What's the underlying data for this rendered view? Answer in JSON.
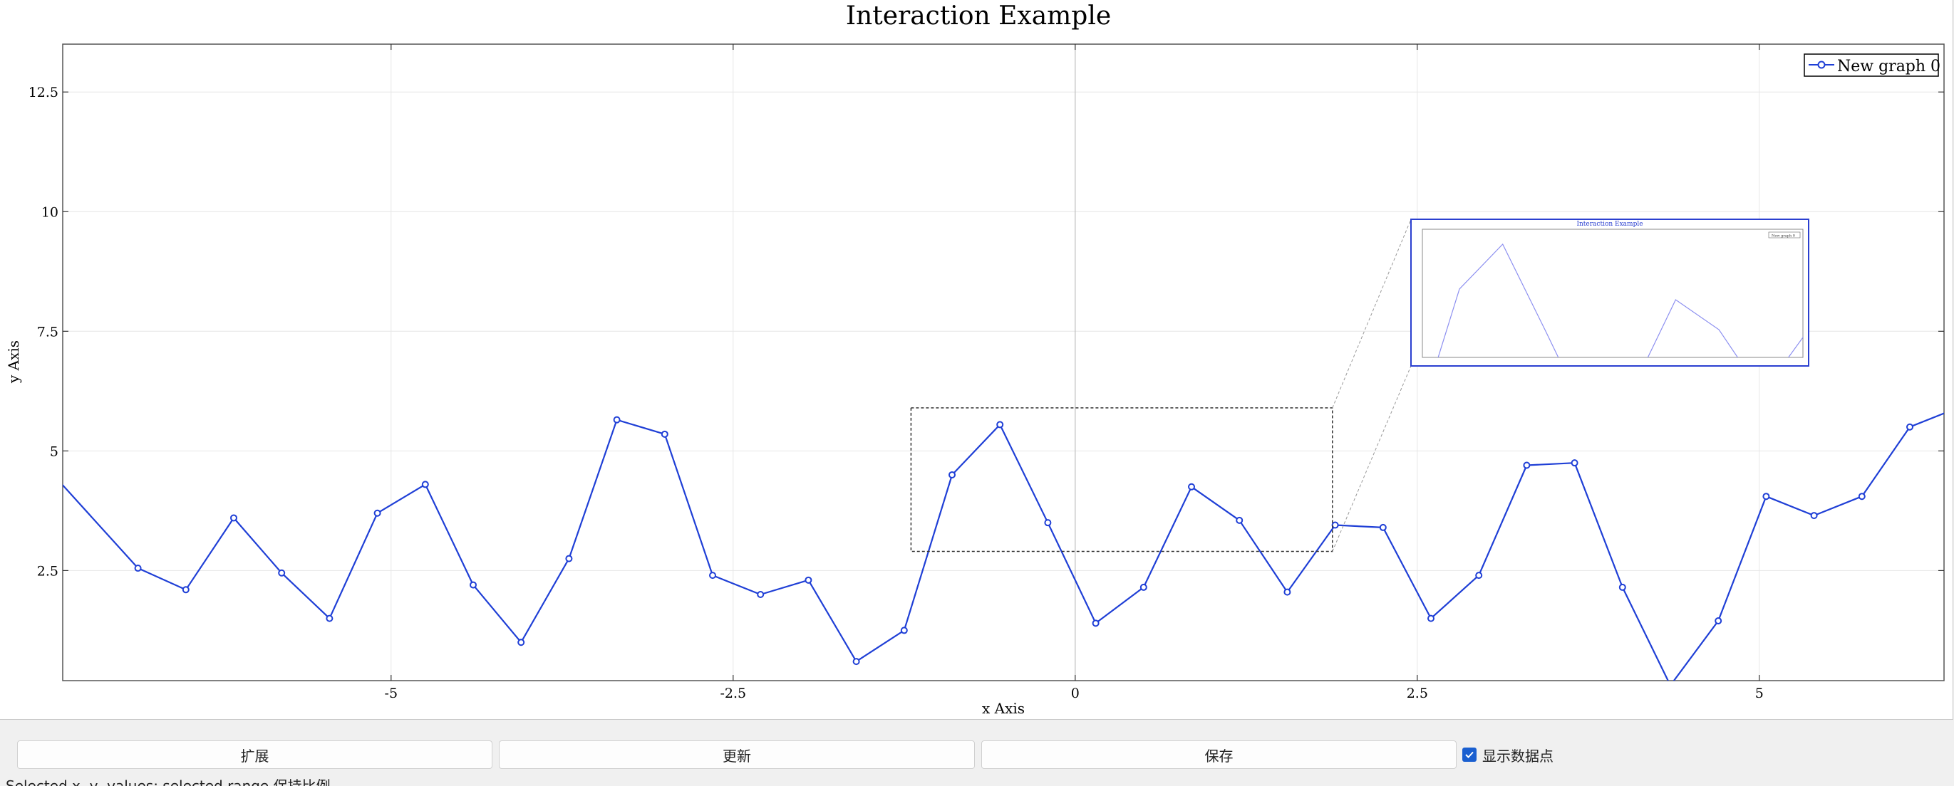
{
  "chart_data": {
    "type": "line",
    "title": "Interaction Example",
    "xlabel": "x Axis",
    "ylabel": "y Axis",
    "xlim": [
      -7.4,
      6.35
    ],
    "ylim": [
      0.2,
      13.5
    ],
    "x_ticks": [
      -5,
      -2.5,
      0,
      2.5,
      5
    ],
    "x_tick_labels": [
      "-5",
      "-2.5",
      "0",
      "2.5",
      "5"
    ],
    "y_ticks": [
      2.5,
      5,
      7.5,
      10,
      12.5
    ],
    "y_tick_labels": [
      "2.5",
      "5",
      "7.5",
      "10",
      "12.5"
    ],
    "grid": true,
    "legend_position": "top-right",
    "series": [
      {
        "name": "New graph 0",
        "color": "#1f3fd6",
        "show_points": true,
        "x": [
          -7.5,
          -6.85,
          -6.5,
          -6.15,
          -5.8,
          -5.45,
          -5.1,
          -4.75,
          -4.4,
          -4.05,
          -3.7,
          -3.35,
          -3.0,
          -2.65,
          -2.3,
          -1.95,
          -1.6,
          -1.25,
          -0.9,
          -0.55,
          -0.2,
          0.15,
          0.5,
          0.85,
          1.2,
          1.55,
          1.9,
          2.25,
          2.6,
          2.95,
          3.3,
          3.65,
          4.0,
          4.35,
          4.7,
          5.05,
          5.4,
          5.75,
          6.1,
          6.45
        ],
        "y": [
          4.6,
          2.55,
          2.1,
          3.6,
          2.45,
          1.5,
          3.7,
          4.3,
          2.2,
          1.0,
          2.75,
          5.65,
          5.35,
          2.4,
          2.0,
          2.3,
          0.6,
          1.25,
          4.5,
          5.55,
          3.5,
          1.4,
          2.15,
          4.25,
          3.55,
          2.05,
          3.45,
          3.4,
          1.5,
          2.4,
          4.7,
          4.75,
          2.15,
          0.1,
          1.45,
          4.05,
          3.65,
          4.05,
          5.5,
          5.9
        ]
      }
    ],
    "zoom_region": {
      "x": [
        -1.2,
        1.88
      ],
      "y": [
        2.9,
        5.9
      ]
    },
    "inset": {
      "title": "Interaction Example",
      "legend": "New graph 0"
    }
  },
  "controls": {
    "expand_label": "扩展",
    "update_label": "更新",
    "save_label": "保存",
    "show_points_label": "显示数据点",
    "show_points_checked": true
  },
  "status": {
    "text": "Selected x, y, values: selected range 保持比例"
  }
}
